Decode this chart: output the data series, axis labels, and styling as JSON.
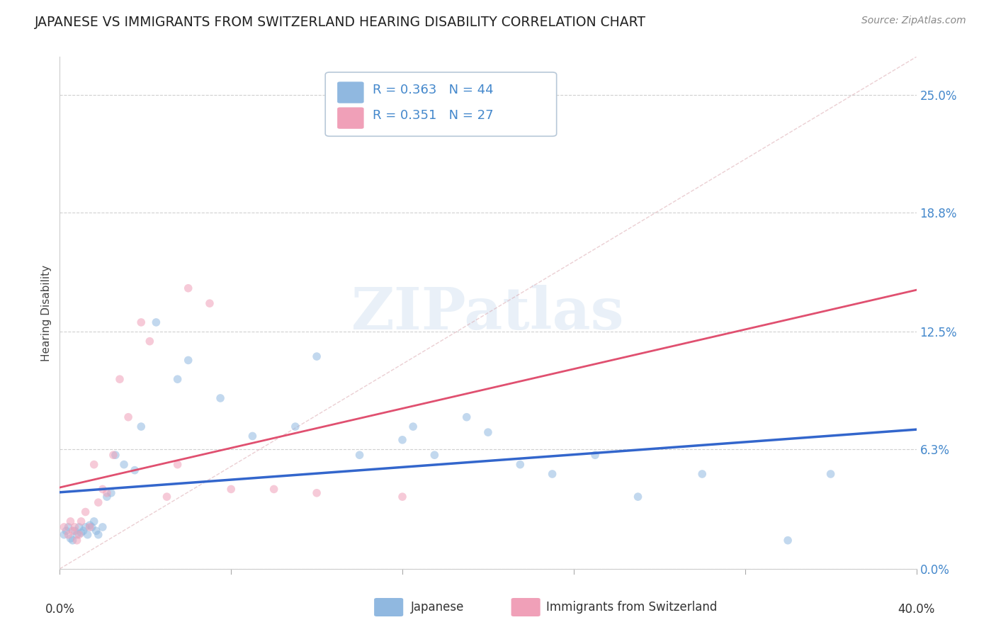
{
  "title": "JAPANESE VS IMMIGRANTS FROM SWITZERLAND HEARING DISABILITY CORRELATION CHART",
  "source": "Source: ZipAtlas.com",
  "ylabel": "Hearing Disability",
  "xlim": [
    0.0,
    0.4
  ],
  "ylim": [
    0.0,
    0.27
  ],
  "ytick_vals": [
    0.0,
    0.063,
    0.125,
    0.188,
    0.25
  ],
  "ytick_labels": [
    "0.0%",
    "6.3%",
    "12.5%",
    "18.8%",
    "25.0%"
  ],
  "bg_color": "#ffffff",
  "grid_color": "#d0d0d0",
  "watermark": "ZIPatlas",
  "japanese": {
    "color": "#90b8e0",
    "R": 0.363,
    "N": 44,
    "trend_color": "#3366cc",
    "points_x": [
      0.002,
      0.003,
      0.004,
      0.005,
      0.006,
      0.007,
      0.008,
      0.009,
      0.01,
      0.011,
      0.012,
      0.013,
      0.014,
      0.015,
      0.016,
      0.017,
      0.018,
      0.02,
      0.022,
      0.024,
      0.026,
      0.03,
      0.035,
      0.038,
      0.045,
      0.055,
      0.06,
      0.075,
      0.09,
      0.11,
      0.12,
      0.14,
      0.16,
      0.165,
      0.175,
      0.19,
      0.2,
      0.215,
      0.23,
      0.25,
      0.27,
      0.3,
      0.34,
      0.36
    ],
    "points_y": [
      0.018,
      0.02,
      0.022,
      0.016,
      0.015,
      0.02,
      0.018,
      0.022,
      0.019,
      0.02,
      0.022,
      0.018,
      0.023,
      0.022,
      0.025,
      0.02,
      0.018,
      0.022,
      0.038,
      0.04,
      0.06,
      0.055,
      0.052,
      0.075,
      0.13,
      0.1,
      0.11,
      0.09,
      0.07,
      0.075,
      0.112,
      0.06,
      0.068,
      0.075,
      0.06,
      0.08,
      0.072,
      0.055,
      0.05,
      0.06,
      0.038,
      0.05,
      0.015,
      0.05
    ]
  },
  "swiss": {
    "color": "#f0a0b8",
    "R": 0.351,
    "N": 27,
    "trend_color": "#e05070",
    "points_x": [
      0.002,
      0.004,
      0.005,
      0.006,
      0.007,
      0.008,
      0.009,
      0.01,
      0.012,
      0.014,
      0.016,
      0.018,
      0.02,
      0.022,
      0.025,
      0.028,
      0.032,
      0.038,
      0.042,
      0.05,
      0.055,
      0.06,
      0.07,
      0.08,
      0.1,
      0.12,
      0.16
    ],
    "points_y": [
      0.022,
      0.018,
      0.025,
      0.02,
      0.022,
      0.015,
      0.018,
      0.025,
      0.03,
      0.022,
      0.055,
      0.035,
      0.042,
      0.04,
      0.06,
      0.1,
      0.08,
      0.13,
      0.12,
      0.038,
      0.055,
      0.148,
      0.14,
      0.042,
      0.042,
      0.04,
      0.038
    ]
  },
  "title_fontsize": 13.5,
  "axis_label_fontsize": 11,
  "tick_fontsize": 12,
  "legend_fontsize": 13,
  "source_fontsize": 10,
  "marker_size": 70,
  "marker_alpha": 0.55
}
